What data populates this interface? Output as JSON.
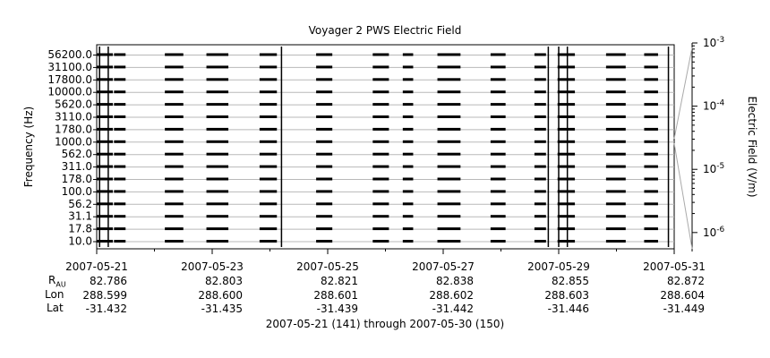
{
  "chart_data": {
    "type": "line",
    "title": "Voyager 2 PWS Electric Field",
    "ylabel": "Frequency (Hz)",
    "colorbar_label": "Electric Field (V/m)",
    "yticks": [
      "56200.0",
      "31100.0",
      "17800.0",
      "10000.0",
      "5620.0",
      "3110.0",
      "1780.0",
      "1000.0",
      "562.0",
      "311.0",
      "178.0",
      "100.0",
      "56.2",
      "31.1",
      "17.8",
      "10.0"
    ],
    "xticks": [
      "2007-05-21",
      "2007-05-23",
      "2007-05-25",
      "2007-05-27",
      "2007-05-29",
      "2007-05-31"
    ],
    "xlim": [
      "2007-05-21",
      "2007-05-31"
    ],
    "colorbar_ticks": [
      "10^-3",
      "10^-4",
      "10^-5",
      "10^-6"
    ],
    "colorbar_exponents": [
      -3,
      -4,
      -5,
      -6
    ],
    "colorbar_lim": [
      -6.3,
      -3
    ],
    "colorbar_scale": "log",
    "grid": true,
    "data_segments_days": [
      [
        0,
        0.28
      ],
      [
        0.3,
        0.5
      ],
      [
        1.18,
        1.5
      ],
      [
        1.9,
        2.28
      ],
      [
        2.82,
        3.12
      ],
      [
        3.8,
        4.08
      ],
      [
        4.78,
        5.06
      ],
      [
        5.3,
        5.48
      ],
      [
        5.9,
        6.3
      ],
      [
        6.82,
        7.08
      ],
      [
        7.58,
        7.78
      ],
      [
        7.98,
        8.28
      ],
      [
        8.82,
        9.16
      ],
      [
        9.48,
        9.72
      ]
    ],
    "spike_days": [
      0.05,
      0.2,
      3.2,
      7.82,
      8.0,
      8.15,
      9.9
    ],
    "ephemeris_labels": [
      "R",
      "AU",
      "Lon",
      "Lat"
    ],
    "ephemeris": {
      "R_AU": [
        "82.786",
        "82.803",
        "82.821",
        "82.838",
        "82.855",
        "82.872"
      ],
      "Lon": [
        "288.599",
        "288.600",
        "288.601",
        "288.602",
        "288.603",
        "288.604"
      ],
      "Lat": [
        "-31.432",
        "-31.435",
        "-31.439",
        "-31.442",
        "-31.446",
        "-31.449"
      ]
    },
    "footer": "2007-05-21 (141) through 2007-05-30 (150)"
  }
}
